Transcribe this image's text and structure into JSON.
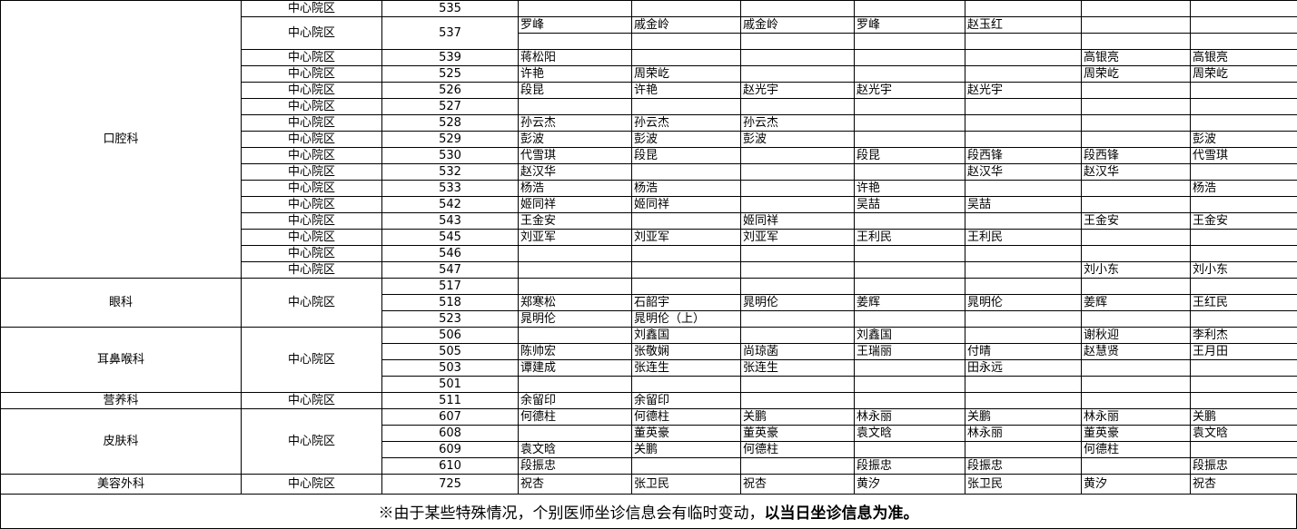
{
  "groups": [
    {
      "dept": "口腔科",
      "campus_merged": false,
      "campus": "中心院区",
      "rows": [
        {
          "campus": "中心院区",
          "room": "535",
          "cells": [
            "",
            "",
            "",
            "",
            "",
            "",
            ""
          ]
        },
        {
          "campus": "中心院区",
          "room": "537",
          "cells": [
            "罗峰",
            "戚金岭",
            "戚金岭",
            "罗峰",
            "赵玉红",
            "",
            ""
          ],
          "cells2": [
            "",
            "",
            "",
            "",
            "",
            "",
            ""
          ]
        },
        {
          "campus": "中心院区",
          "room": "539",
          "cells": [
            "蒋松阳",
            "",
            "",
            "",
            "",
            "高银亮",
            "高银亮"
          ]
        },
        {
          "campus": "中心院区",
          "room": "525",
          "cells": [
            "许艳",
            "周荣屹",
            "",
            "",
            "",
            "周荣屹",
            "周荣屹"
          ]
        },
        {
          "campus": "中心院区",
          "room": "526",
          "cells": [
            "段昆",
            "许艳",
            "赵光宇",
            "赵光宇",
            "赵光宇",
            "",
            ""
          ]
        },
        {
          "campus": "中心院区",
          "room": "527",
          "cells": [
            "",
            "",
            "",
            "",
            "",
            "",
            ""
          ]
        },
        {
          "campus": "中心院区",
          "room": "528",
          "cells": [
            "孙云杰",
            "孙云杰",
            "孙云杰",
            "",
            "",
            "",
            ""
          ]
        },
        {
          "campus": "中心院区",
          "room": "529",
          "cells": [
            "彭波",
            "彭波",
            "彭波",
            "",
            "",
            "",
            "彭波"
          ]
        },
        {
          "campus": "中心院区",
          "room": "530",
          "cells": [
            "代雪琪",
            "段昆",
            "",
            "段昆",
            "段西锋",
            "段西锋",
            "代雪琪"
          ]
        },
        {
          "campus": "中心院区",
          "room": "532",
          "cells": [
            "赵汉华",
            "",
            "",
            "",
            "赵汉华",
            "赵汉华",
            ""
          ]
        },
        {
          "campus": "中心院区",
          "room": "533",
          "cells": [
            "杨浩",
            "杨浩",
            "",
            "许艳",
            "",
            "",
            "杨浩"
          ]
        },
        {
          "campus": "中心院区",
          "room": "542",
          "cells": [
            "姬同祥",
            "姬同祥",
            "",
            "吴喆",
            "吴喆",
            "",
            ""
          ]
        },
        {
          "campus": "中心院区",
          "room": "543",
          "cells": [
            "王金安",
            "",
            "姬同祥",
            "",
            "",
            "王金安",
            "王金安"
          ]
        },
        {
          "campus": "中心院区",
          "room": "545",
          "cells": [
            "刘亚军",
            "刘亚军",
            "刘亚军",
            "王利民",
            "王利民",
            "",
            ""
          ]
        },
        {
          "campus": "中心院区",
          "room": "546",
          "cells": [
            "",
            "",
            "",
            "",
            "",
            "",
            ""
          ]
        },
        {
          "campus": "中心院区",
          "room": "547",
          "cells": [
            "",
            "",
            "",
            "",
            "",
            "刘小东",
            "刘小东"
          ]
        }
      ]
    },
    {
      "dept": "眼科",
      "campus_merged": true,
      "campus": "中心院区",
      "rows": [
        {
          "room": "517",
          "cells": [
            "",
            "",
            "",
            "",
            "",
            "",
            ""
          ]
        },
        {
          "room": "518",
          "cells": [
            "郑寒松",
            "石韶宇",
            "晁明伦",
            "姜辉",
            "晁明伦",
            "姜辉",
            "王红民"
          ]
        },
        {
          "room": "523",
          "cells": [
            "晁明伦",
            "晁明伦（上）",
            "",
            "",
            "",
            "",
            ""
          ]
        }
      ]
    },
    {
      "dept": "耳鼻喉科",
      "campus_merged": true,
      "campus": "中心院区",
      "rows": [
        {
          "room": "506",
          "cells": [
            "",
            "刘鑫国",
            "",
            "刘鑫国",
            "",
            "谢秋迎",
            "李利杰"
          ]
        },
        {
          "room": "505",
          "cells": [
            "陈帅宏",
            "张敬娴",
            "尚琼菡",
            "王瑞丽",
            "付晴",
            "赵慧贤",
            "王月田"
          ]
        },
        {
          "room": "503",
          "cells": [
            "谭建成",
            "张连生",
            "张连生",
            "",
            "田永远",
            "",
            ""
          ]
        },
        {
          "room": "501",
          "cells": [
            "",
            "",
            "",
            "",
            "",
            "",
            ""
          ]
        }
      ]
    },
    {
      "dept": "营养科",
      "campus_merged": true,
      "campus": "中心院区",
      "rows": [
        {
          "room": "511",
          "cells": [
            "余留印",
            "余留印",
            "",
            "",
            "",
            "",
            ""
          ]
        }
      ]
    },
    {
      "dept": "皮肤科",
      "campus_merged": true,
      "campus": "中心院区",
      "rows": [
        {
          "room": "607",
          "cells": [
            "何德柱",
            "何德柱",
            "关鹏",
            "林永丽",
            "关鹏",
            "林永丽",
            "关鹏"
          ]
        },
        {
          "room": "608",
          "cells": [
            "",
            "董英豪",
            "董英豪",
            "袁文晗",
            "林永丽",
            "董英豪",
            "袁文晗"
          ]
        },
        {
          "room": "609",
          "cells": [
            "袁文晗",
            "关鹏",
            "何德柱",
            "",
            "",
            "何德柱",
            ""
          ]
        },
        {
          "room": "610",
          "cells": [
            "段振忠",
            "",
            "",
            "段振忠",
            "段振忠",
            "",
            "段振忠"
          ]
        }
      ]
    },
    {
      "dept": "美容外科",
      "campus_merged": true,
      "campus": "中心院区",
      "rows": [
        {
          "room": "725",
          "cells": [
            "祝杏",
            "张卫民",
            "祝杏",
            "黄汐",
            "张卫民",
            "黄汐",
            "祝杏"
          ]
        }
      ]
    }
  ],
  "footer": {
    "notice": "※由于某些特殊情况，个别医师坐诊信息会有临时变动，",
    "notice_bold": "以当日坐诊信息为准。"
  }
}
